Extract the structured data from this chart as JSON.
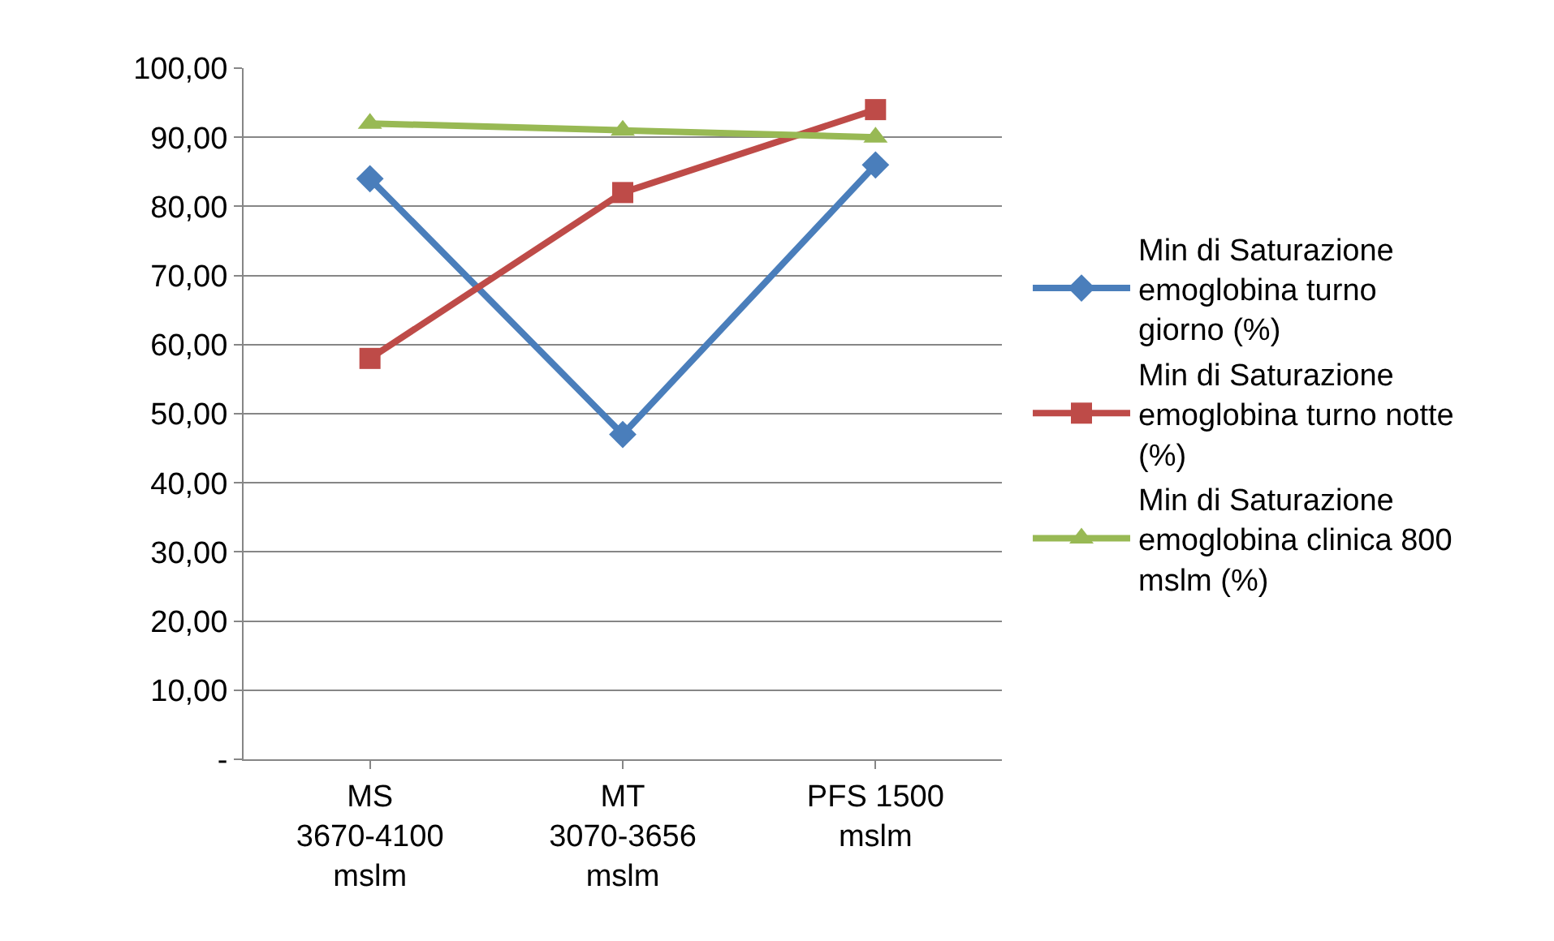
{
  "chart_data": {
    "type": "line",
    "categories": [
      "MS 3670-4100 mslm",
      "MT 3070-3656 mslm",
      "PFS 1500 mslm"
    ],
    "series": [
      {
        "name": "Min di Saturazione emoglobina turno giorno (%)",
        "color": "#4a7ebb",
        "marker": "diamond",
        "values": [
          84,
          47,
          86
        ]
      },
      {
        "name": "Min di Saturazione emoglobina turno notte (%)",
        "color": "#be4b48",
        "marker": "square",
        "values": [
          58,
          82,
          94
        ]
      },
      {
        "name": "Min di Saturazione emoglobina clinica 800 mslm (%)",
        "color": "#98b954",
        "marker": "triangle",
        "values": [
          92,
          91,
          90
        ]
      }
    ],
    "ylim": [
      0,
      100
    ],
    "yticks": [
      {
        "value": 0,
        "label": "-"
      },
      {
        "value": 10,
        "label": "10,00"
      },
      {
        "value": 20,
        "label": "20,00"
      },
      {
        "value": 30,
        "label": "30,00"
      },
      {
        "value": 40,
        "label": "40,00"
      },
      {
        "value": 50,
        "label": "50,00"
      },
      {
        "value": 60,
        "label": "60,00"
      },
      {
        "value": 70,
        "label": "70,00"
      },
      {
        "value": 80,
        "label": "80,00"
      },
      {
        "value": 90,
        "label": "90,00"
      },
      {
        "value": 100,
        "label": "100,00"
      }
    ],
    "grid": "y",
    "legend": "right",
    "line_style": "solid"
  }
}
